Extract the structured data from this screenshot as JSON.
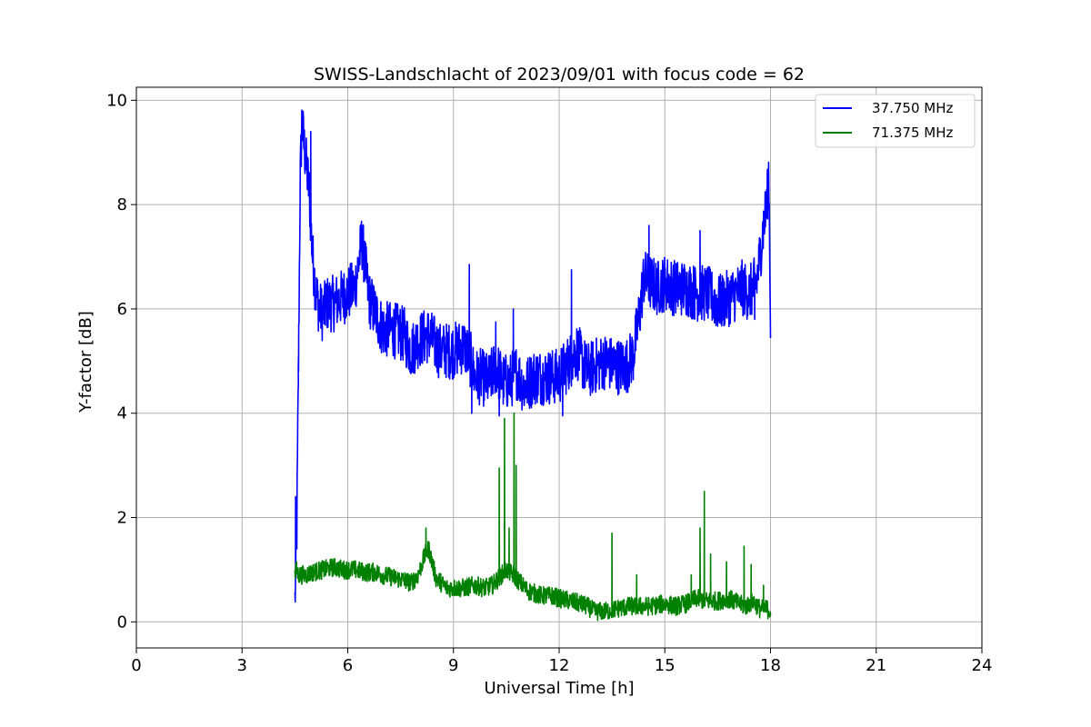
{
  "chart_data": {
    "type": "line",
    "title": "SWISS-Landschlacht of 2023/09/01 with focus code = 62",
    "xlabel": "Universal Time [h]",
    "ylabel": "Y-factor [dB]",
    "xlim": [
      0,
      24
    ],
    "ylim": [
      -0.5,
      10.25
    ],
    "xticks": [
      0,
      3,
      6,
      9,
      12,
      15,
      18,
      21,
      24
    ],
    "yticks": [
      0,
      2,
      4,
      6,
      8,
      10
    ],
    "grid": true,
    "legend_position": "top-right",
    "series": [
      {
        "name": "37.750 MHz",
        "color": "#0000ff",
        "x": [
          4.5,
          4.55,
          4.6,
          4.65,
          4.7,
          4.75,
          4.8,
          4.9,
          5.0,
          5.1,
          5.2,
          5.3,
          5.4,
          5.6,
          5.8,
          6.0,
          6.2,
          6.4,
          6.5,
          6.6,
          6.8,
          7.0,
          7.3,
          7.6,
          7.8,
          8.0,
          8.3,
          8.6,
          9.0,
          9.3,
          9.5,
          9.6,
          9.8,
          10.0,
          10.2,
          10.4,
          10.6,
          10.8,
          11.0,
          11.3,
          11.6,
          11.8,
          12.0,
          12.3,
          12.5,
          12.8,
          13.0,
          13.3,
          13.6,
          13.9,
          14.1,
          14.3,
          14.4,
          14.6,
          14.8,
          15.0,
          15.3,
          15.6,
          15.9,
          16.2,
          16.5,
          16.8,
          17.0,
          17.2,
          17.4,
          17.6,
          17.7,
          17.8,
          17.9,
          17.95,
          18.0
        ],
        "y": [
          0.4,
          1.5,
          4.8,
          8.5,
          9.6,
          9.2,
          8.9,
          8.3,
          7.0,
          6.3,
          6.0,
          5.9,
          6.1,
          6.1,
          6.2,
          6.3,
          6.4,
          7.3,
          6.8,
          6.2,
          5.9,
          5.6,
          5.6,
          5.5,
          5.2,
          5.4,
          5.5,
          5.2,
          5.2,
          5.3,
          5.0,
          4.7,
          4.7,
          4.6,
          4.9,
          4.6,
          4.6,
          4.8,
          4.5,
          4.7,
          4.7,
          4.7,
          4.7,
          5.0,
          5.2,
          4.8,
          4.9,
          5.0,
          4.9,
          4.9,
          5.1,
          6.0,
          6.6,
          6.5,
          6.4,
          6.5,
          6.4,
          6.4,
          6.3,
          6.3,
          6.1,
          6.2,
          6.3,
          6.4,
          6.3,
          6.5,
          7.0,
          7.6,
          8.0,
          8.7,
          5.8
        ],
        "spikes": [
          [
            4.52,
            2.4
          ],
          [
            4.6,
            5.1
          ],
          [
            4.72,
            9.75
          ],
          [
            4.95,
            9.4
          ],
          [
            6.43,
            7.55
          ],
          [
            9.45,
            6.85
          ],
          [
            9.52,
            4.0
          ],
          [
            10.2,
            5.75
          ],
          [
            10.7,
            6.0
          ],
          [
            10.3,
            3.95
          ],
          [
            12.35,
            6.75
          ],
          [
            12.1,
            3.95
          ],
          [
            14.55,
            7.6
          ],
          [
            16.0,
            7.5
          ],
          [
            17.55,
            5.8
          ]
        ]
      },
      {
        "name": "71.375 MHz",
        "color": "#008000",
        "x": [
          4.5,
          4.55,
          4.6,
          4.8,
          5.0,
          5.3,
          5.6,
          5.9,
          6.2,
          6.5,
          6.8,
          7.0,
          7.3,
          7.6,
          7.8,
          8.0,
          8.2,
          8.3,
          8.5,
          8.8,
          9.0,
          9.3,
          9.6,
          9.9,
          10.1,
          10.3,
          10.5,
          10.7,
          10.9,
          11.1,
          11.3,
          11.5,
          11.8,
          12.0,
          12.3,
          12.6,
          12.8,
          13.0,
          13.3,
          13.6,
          14.0,
          14.3,
          14.6,
          15.0,
          15.3,
          15.6,
          15.9,
          16.2,
          16.5,
          16.8,
          17.1,
          17.3,
          17.5,
          17.7,
          17.9,
          18.0
        ],
        "y": [
          0.9,
          1.0,
          0.9,
          0.9,
          0.95,
          1.0,
          1.05,
          1.0,
          1.0,
          0.95,
          0.95,
          0.9,
          0.85,
          0.8,
          0.75,
          0.9,
          1.3,
          1.4,
          0.85,
          0.65,
          0.65,
          0.65,
          0.7,
          0.65,
          0.7,
          0.85,
          1.0,
          0.9,
          0.75,
          0.6,
          0.55,
          0.5,
          0.5,
          0.45,
          0.4,
          0.35,
          0.3,
          0.2,
          0.2,
          0.25,
          0.3,
          0.3,
          0.3,
          0.35,
          0.3,
          0.35,
          0.45,
          0.4,
          0.4,
          0.45,
          0.35,
          0.3,
          0.4,
          0.25,
          0.25,
          0.2
        ],
        "spikes": [
          [
            8.22,
            1.8
          ],
          [
            10.3,
            2.95
          ],
          [
            10.45,
            3.9
          ],
          [
            10.58,
            1.8
          ],
          [
            10.72,
            4.0
          ],
          [
            10.78,
            3.0
          ],
          [
            13.5,
            1.7
          ],
          [
            14.2,
            0.9
          ],
          [
            15.75,
            0.9
          ],
          [
            16.0,
            1.8
          ],
          [
            16.12,
            2.5
          ],
          [
            16.3,
            1.3
          ],
          [
            16.75,
            1.15
          ],
          [
            17.25,
            1.45
          ],
          [
            17.45,
            1.1
          ],
          [
            17.8,
            0.7
          ]
        ]
      }
    ]
  }
}
